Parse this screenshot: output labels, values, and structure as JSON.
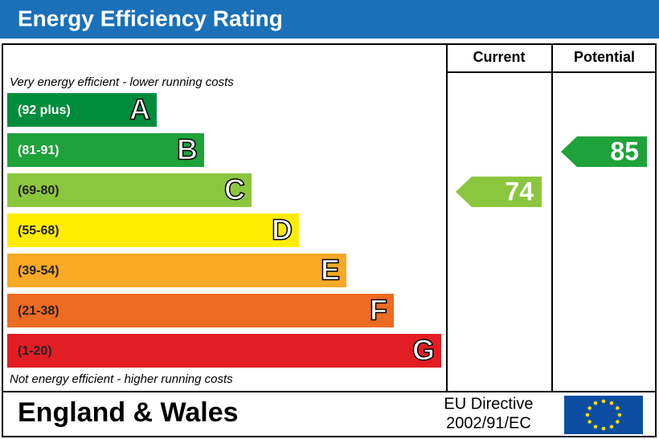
{
  "chart_data": {
    "type": "epc",
    "title": "Energy Efficiency Rating",
    "columns": [
      "Current",
      "Potential"
    ],
    "top_note": "Very energy efficient - lower running costs",
    "bottom_note": "Not energy efficient - higher running costs",
    "bands": [
      {
        "range": "(92 plus)",
        "letter": "A",
        "color": "#008c3c"
      },
      {
        "range": "(81-91)",
        "letter": "B",
        "color": "#1ea23a"
      },
      {
        "range": "(69-80)",
        "letter": "C",
        "color": "#8cc63f"
      },
      {
        "range": "(55-68)",
        "letter": "D",
        "color": "#ffed00"
      },
      {
        "range": "(39-54)",
        "letter": "E",
        "color": "#f8a925"
      },
      {
        "range": "(21-38)",
        "letter": "F",
        "color": "#ee6b24"
      },
      {
        "range": "(1-20)",
        "letter": "G",
        "color": "#e31d24"
      }
    ],
    "values": [
      74,
      85
    ],
    "region": "England & Wales",
    "directive": [
      "EU Directive",
      "2002/91/EC"
    ]
  }
}
